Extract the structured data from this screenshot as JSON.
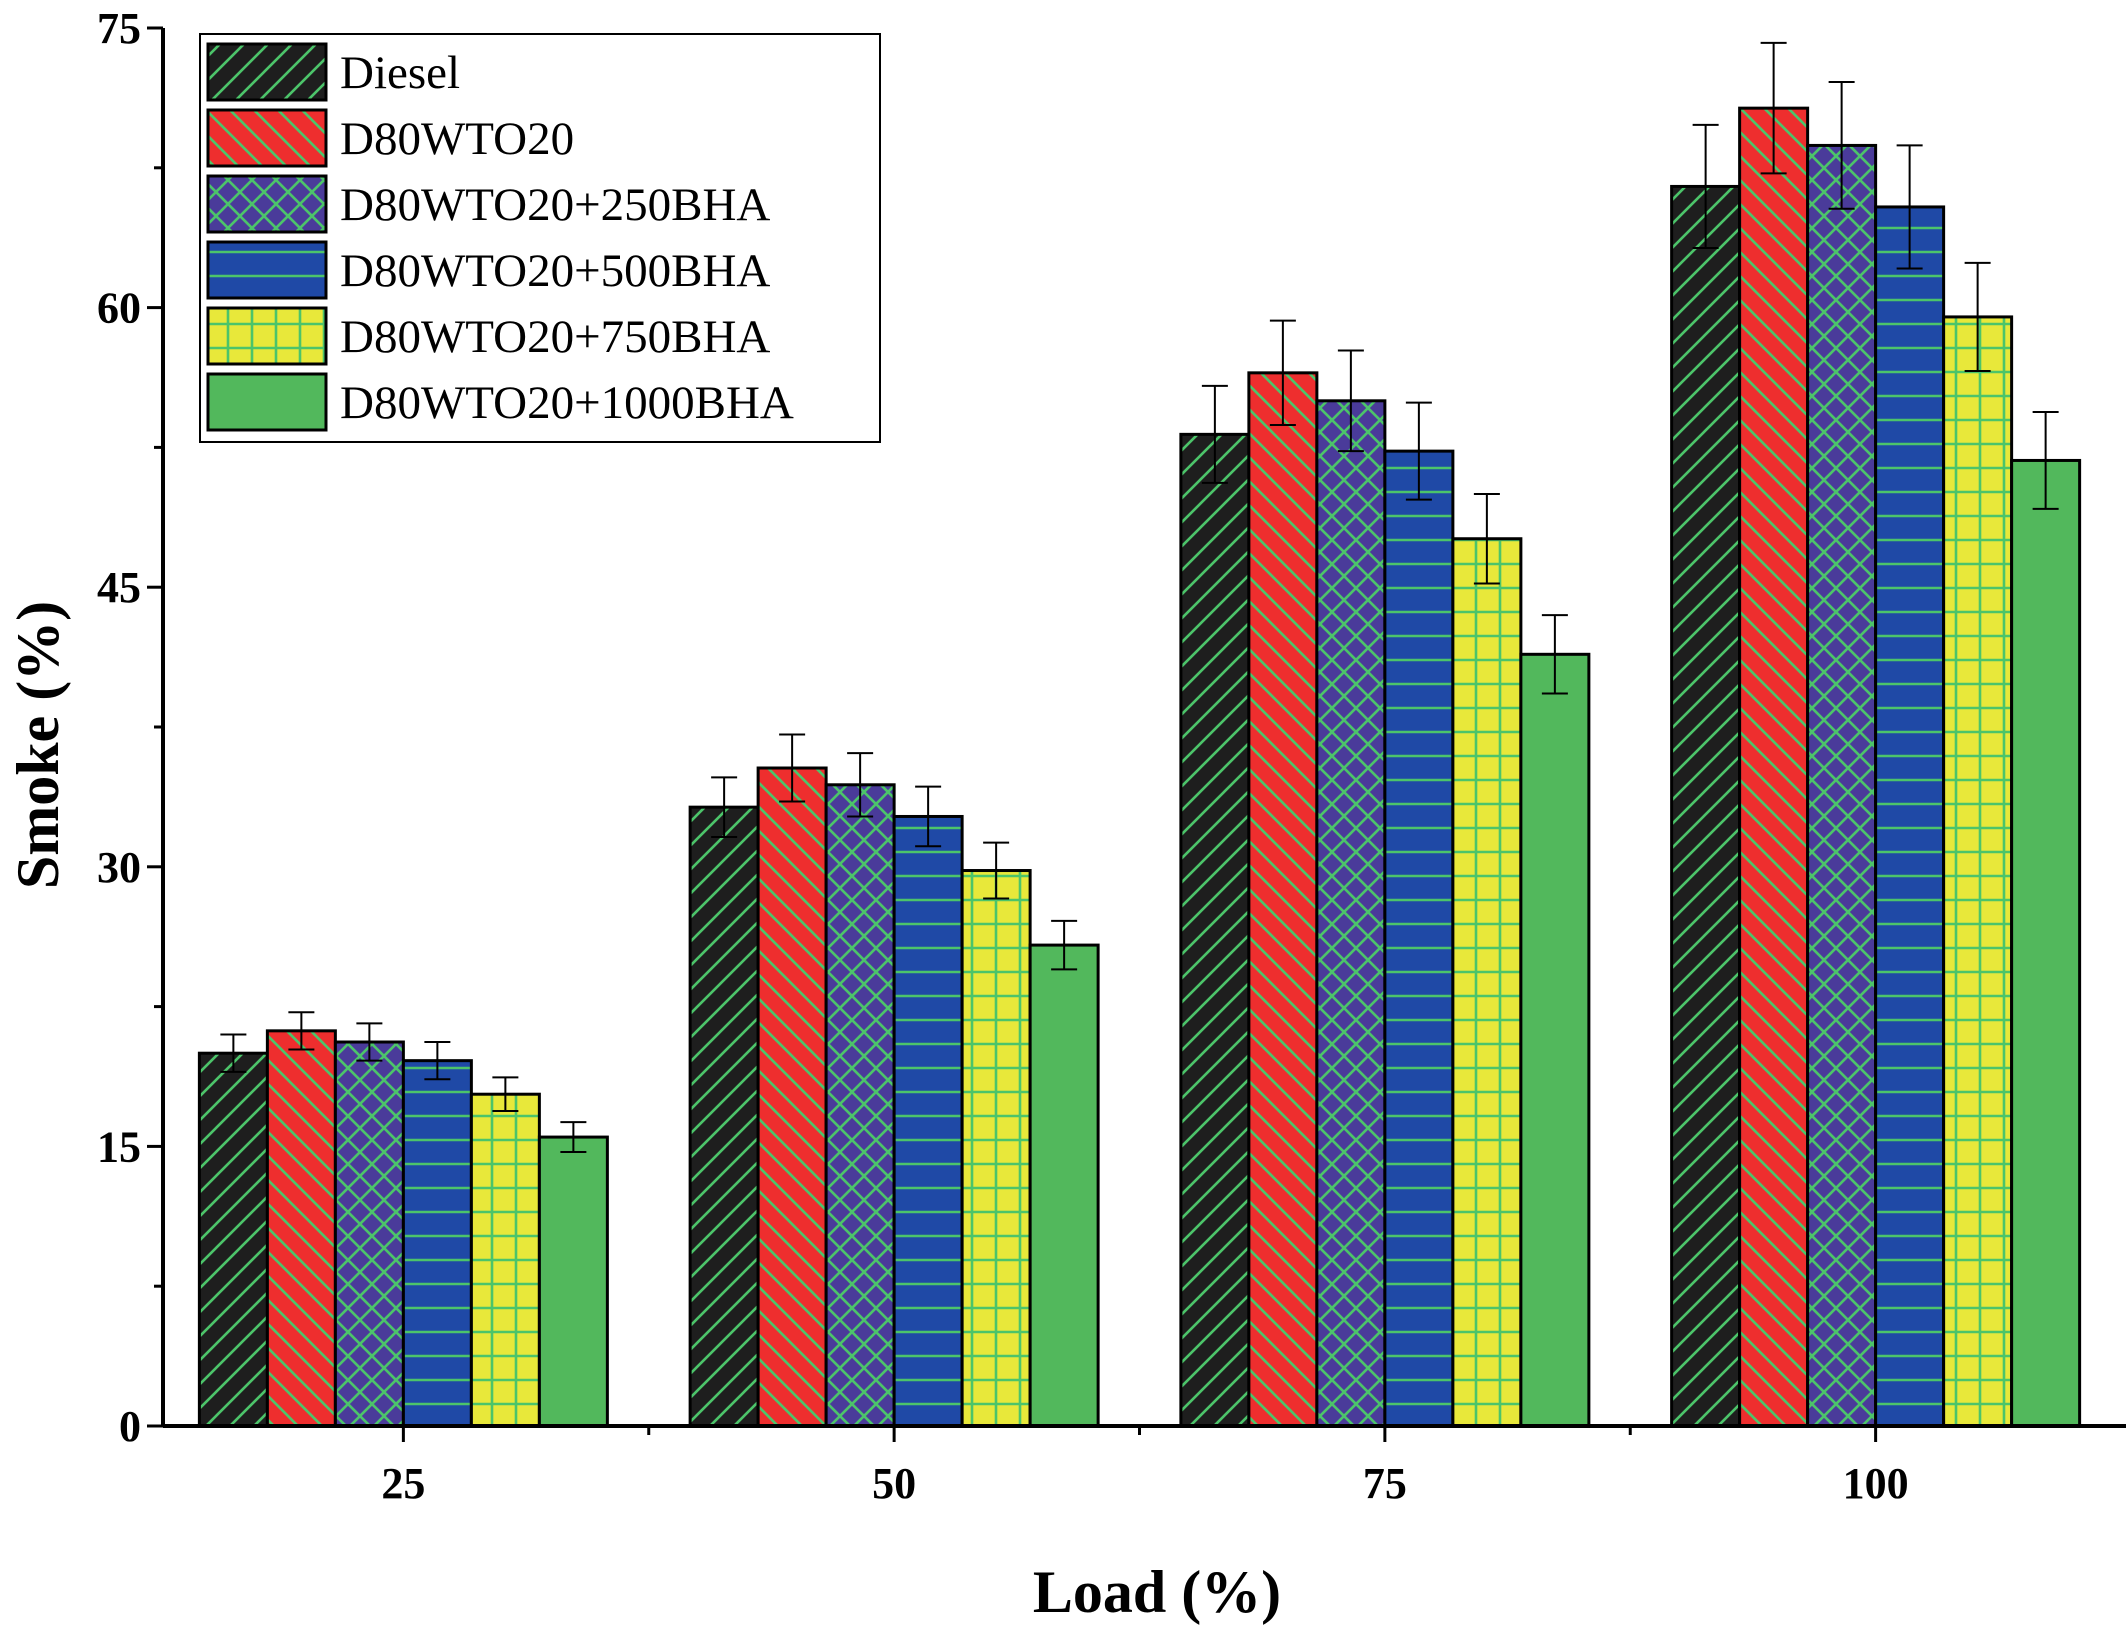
{
  "chart_data": {
    "type": "bar",
    "xlabel": "Load (%)",
    "ylabel": "Smoke (%)",
    "categories": [
      "25",
      "50",
      "75",
      "100"
    ],
    "ylim": [
      0,
      75
    ],
    "yticks": [
      "0",
      "15",
      "30",
      "45",
      "60",
      "75"
    ],
    "legend_position": "top-left",
    "grid": false,
    "series": [
      {
        "name": "Diesel",
        "values": [
          20.0,
          33.2,
          53.2,
          66.5
        ],
        "errors": [
          1.0,
          1.6,
          2.6,
          3.3
        ],
        "color": "#1e1e1e",
        "pattern": "diag-up",
        "pattern_color": "#4cc46a"
      },
      {
        "name": "D80WTO20",
        "values": [
          21.2,
          35.3,
          56.5,
          70.7
        ],
        "errors": [
          1.0,
          1.8,
          2.8,
          3.5
        ],
        "color": "#ee2e2e",
        "pattern": "diag-down",
        "pattern_color": "#4cc46a"
      },
      {
        "name": "D80WTO20+250BHA",
        "values": [
          20.6,
          34.4,
          55.0,
          68.7
        ],
        "errors": [
          1.0,
          1.7,
          2.7,
          3.4
        ],
        "color": "#4a3b9a",
        "pattern": "cross",
        "pattern_color": "#4cc46a"
      },
      {
        "name": "D80WTO20+500BHA",
        "values": [
          19.6,
          32.7,
          52.3,
          65.4
        ],
        "errors": [
          1.0,
          1.6,
          2.6,
          3.3
        ],
        "color": "#1f49a6",
        "pattern": "horizontal",
        "pattern_color": "#4cc46a"
      },
      {
        "name": "D80WTO20+750BHA",
        "values": [
          17.8,
          29.8,
          47.6,
          59.5
        ],
        "errors": [
          0.9,
          1.5,
          2.4,
          2.9
        ],
        "color": "#e8e83a",
        "pattern": "grid",
        "pattern_color": "#4cc46a"
      },
      {
        "name": "D80WTO20+1000BHA",
        "values": [
          15.5,
          25.8,
          41.4,
          51.8
        ],
        "errors": [
          0.8,
          1.3,
          2.1,
          2.6
        ],
        "color": "#52b85c",
        "pattern": "none",
        "pattern_color": "#4cc46a"
      }
    ]
  }
}
